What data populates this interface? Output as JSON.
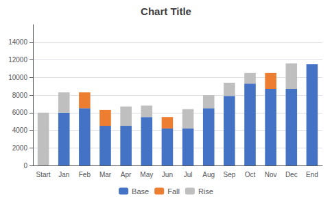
{
  "chart_data": {
    "type": "bar",
    "title": "Chart Title",
    "categories": [
      "Start",
      "Jan",
      "Feb",
      "Mar",
      "Apr",
      "May",
      "Jun",
      "Jul",
      "Aug",
      "Sep",
      "Oct",
      "Nov",
      "Dec",
      "End"
    ],
    "series": [
      {
        "name": "Base",
        "color": "#4472C4",
        "values": [
          0,
          6000,
          6500,
          4500,
          4500,
          5500,
          4200,
          4200,
          6500,
          7900,
          9300,
          8700,
          8700,
          11500
        ]
      },
      {
        "name": "Fall",
        "color": "#ED7D31",
        "values": [
          0,
          0,
          1800,
          1800,
          0,
          0,
          1300,
          0,
          0,
          0,
          0,
          1800,
          0,
          0
        ]
      },
      {
        "name": "Rise",
        "color": "#BFBFBF",
        "values": [
          6000,
          2300,
          0,
          0,
          2200,
          1300,
          0,
          2200,
          1500,
          1500,
          1200,
          0,
          2900,
          0
        ]
      }
    ],
    "stacked": true,
    "ylim": [
      0,
      16000
    ],
    "yticks": [
      0,
      2000,
      4000,
      6000,
      8000,
      10000,
      12000,
      14000
    ],
    "grid": true,
    "legend": "bottom"
  }
}
